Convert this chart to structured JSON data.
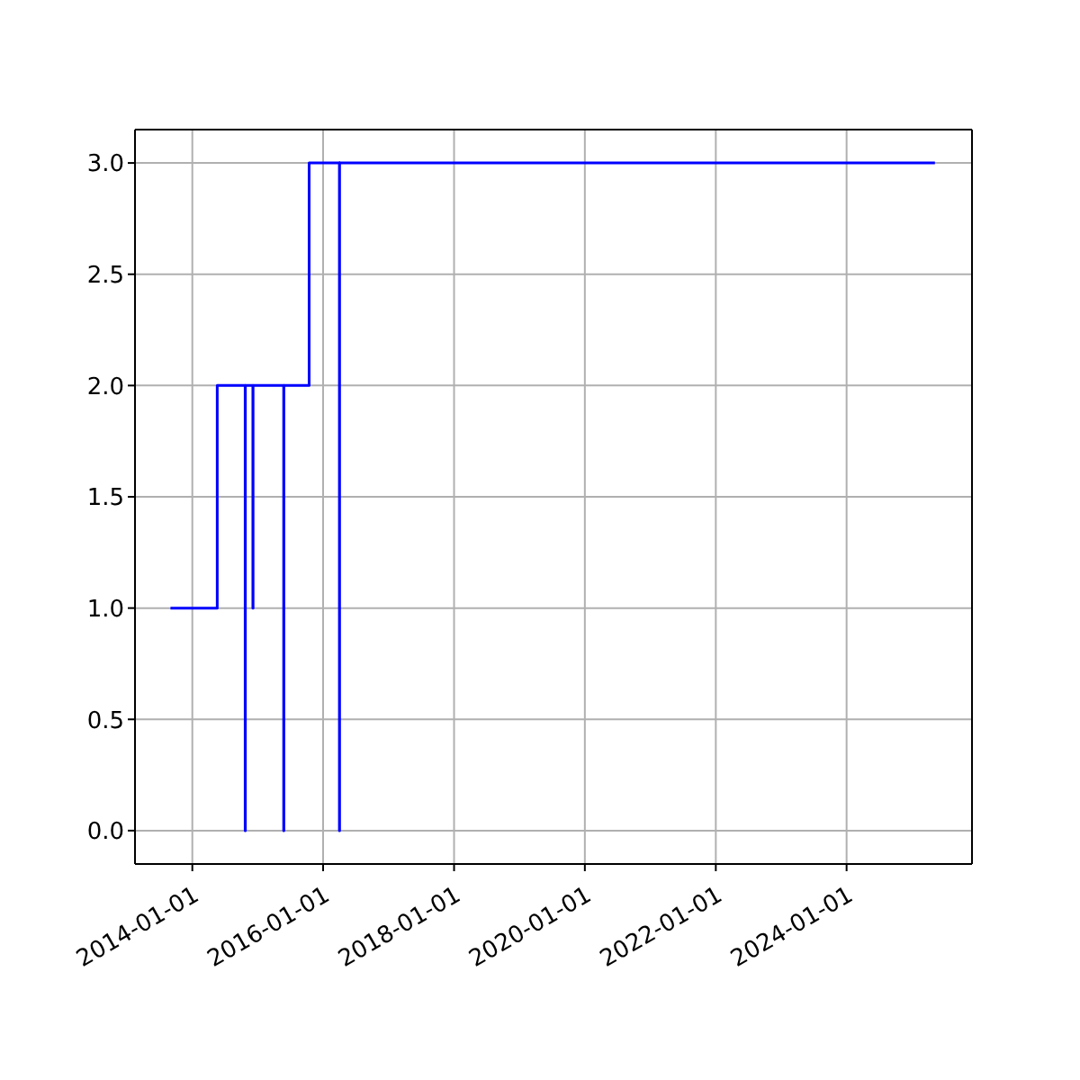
{
  "chart_data": {
    "type": "step",
    "x": [
      "2013-09-01",
      "2014-05-20",
      "2014-10-23",
      "2014-10-24",
      "2014-12-05",
      "2014-12-06",
      "2015-05-26",
      "2015-05-27",
      "2015-10-15",
      "2016-04-01",
      "2016-04-02",
      "2025-05-08"
    ],
    "series": [
      {
        "color": "#0000ff",
        "values": [
          1,
          2,
          0,
          2,
          1,
          2,
          0,
          2,
          3,
          0,
          3,
          3
        ]
      }
    ],
    "xlim": [
      "2013-02-15",
      "2025-12-01"
    ],
    "xticks": [
      "2014-01-01",
      "2016-01-01",
      "2018-01-01",
      "2020-01-01",
      "2022-01-01",
      "2024-01-01"
    ],
    "ylim": [
      -0.15,
      3.15
    ],
    "yticks": [
      {
        "value": 0,
        "label": "0.0"
      },
      0.5,
      {
        "value": 1,
        "label": "1.0"
      },
      1.5,
      {
        "value": 2,
        "label": "2.0"
      },
      2.5,
      {
        "value": 3,
        "label": "3.0"
      }
    ],
    "grid": true,
    "marker": "none",
    "line_style": "solid"
  }
}
